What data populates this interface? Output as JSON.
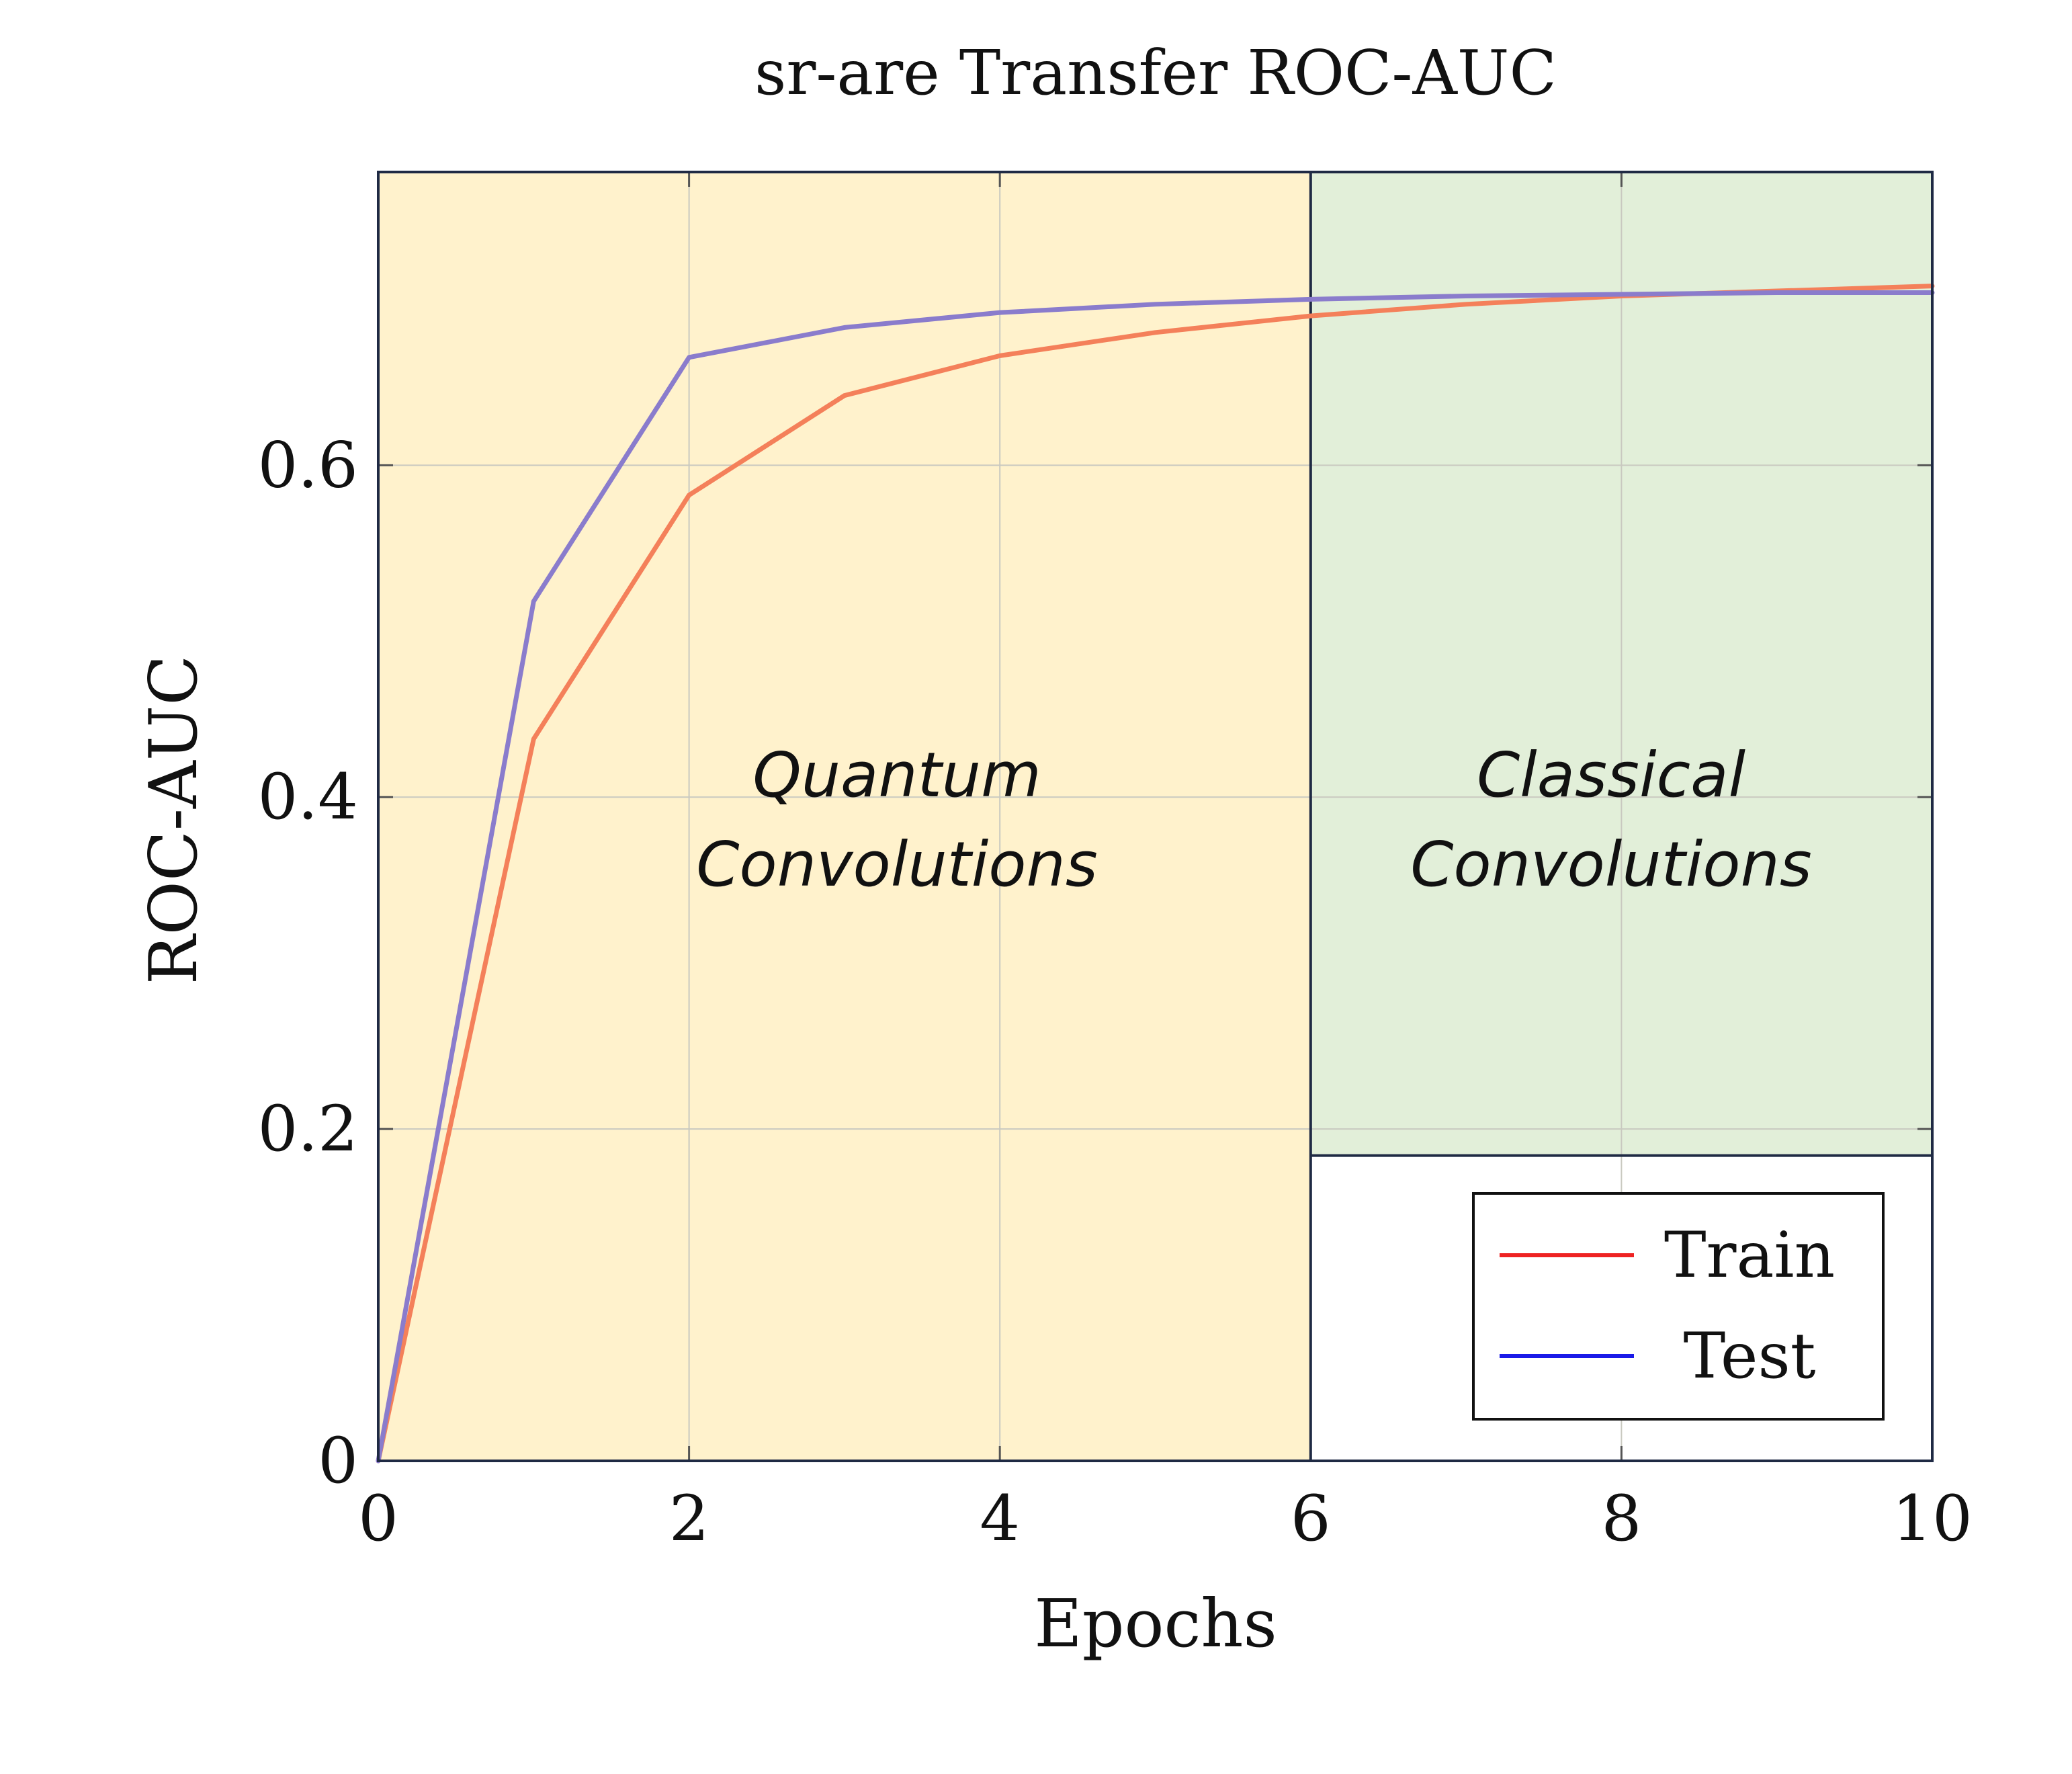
{
  "chart_data": {
    "type": "line",
    "title": "sr-are Transfer ROC-AUC",
    "xlabel": "Epochs",
    "ylabel": "ROC-AUC",
    "xlim": [
      0,
      10
    ],
    "ylim": [
      0,
      0.7767
    ],
    "xticks": [
      0,
      2,
      4,
      6,
      8,
      10
    ],
    "yticks": [
      0,
      0.2,
      0.4,
      0.6
    ],
    "xtick_labels": [
      "0",
      "2",
      "4",
      "6",
      "8",
      "10"
    ],
    "ytick_labels": [
      "0",
      "0.2",
      "0.4",
      "0.6"
    ],
    "grid": true,
    "legend": {
      "placement": "bottom-right"
    },
    "regions": [
      {
        "label_line1": "Quantum",
        "label_line2": "Convolutions",
        "x_start": 0,
        "x_end": 6,
        "color": "#fff2cc"
      },
      {
        "label_line1": "Classical",
        "label_line2": "Convolutions",
        "x_start": 6,
        "x_end": 10,
        "y_start": 0.184,
        "color": "#e2efd9"
      }
    ],
    "series": [
      {
        "name": "Train",
        "color": "#f4805a",
        "legend_color": "#ee2222",
        "x": [
          0,
          1,
          2,
          3,
          4,
          5,
          6,
          7,
          8,
          9,
          10
        ],
        "values": [
          0,
          0.435,
          0.582,
          0.642,
          0.666,
          0.68,
          0.69,
          0.697,
          0.702,
          0.705,
          0.708
        ]
      },
      {
        "name": "Test",
        "color": "#8a7ccc",
        "legend_color": "#1a1ae8",
        "x": [
          0,
          1,
          2,
          3,
          4,
          5,
          6,
          7,
          8,
          9,
          10
        ],
        "values": [
          0,
          0.518,
          0.665,
          0.683,
          0.692,
          0.697,
          0.7,
          0.702,
          0.703,
          0.704,
          0.704
        ]
      }
    ]
  }
}
